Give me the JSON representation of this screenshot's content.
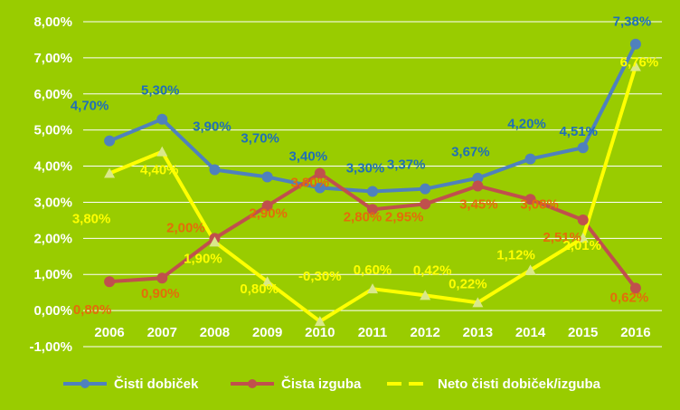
{
  "chart_data": {
    "type": "line",
    "x": [
      "2006",
      "2007",
      "2008",
      "2009",
      "2010",
      "2011",
      "2012",
      "2013",
      "2014",
      "2015",
      "2016"
    ],
    "y_ticks": [
      "-1,00%",
      "0,00%",
      "1,00%",
      "2,00%",
      "3,00%",
      "4,00%",
      "5,00%",
      "6,00%",
      "7,00%",
      "8,00%"
    ],
    "ylim": [
      -1,
      8
    ],
    "grid": true,
    "legend_position": "bottom",
    "background_color": "#99cc00",
    "series": [
      {
        "name": "Čisti dobiček",
        "color": "#4f81bd",
        "label_color": "#1f6fb8",
        "marker": "circle",
        "values": [
          4.7,
          5.3,
          3.9,
          3.7,
          3.4,
          3.3,
          3.37,
          3.67,
          4.2,
          4.51,
          7.38
        ],
        "labels": [
          "4,70%",
          "5,30%",
          "3,90%",
          "3,70%",
          "3,40%",
          "3,30%",
          "3,37%",
          "3,67%",
          "4,20%",
          "4,51%",
          "7,38%"
        ]
      },
      {
        "name": "Čista izguba",
        "color": "#c0504d",
        "label_color": "#e46c0a",
        "marker": "circle",
        "values": [
          0.8,
          0.9,
          2.0,
          2.9,
          3.8,
          2.8,
          2.95,
          3.45,
          3.08,
          2.51,
          0.62
        ],
        "labels": [
          "0,80%",
          "0,90%",
          "2,00%",
          "2,90%",
          "3,80%",
          "2,80%",
          "2,95%",
          "3,45%",
          "3,08%",
          "2,51%",
          "0,62%"
        ]
      },
      {
        "name": "Neto čisti dobiček/izguba",
        "color": "#ffff00",
        "label_color": "#ffff00",
        "marker": "triangle",
        "values": [
          3.8,
          4.4,
          1.9,
          0.8,
          -0.3,
          0.6,
          0.42,
          0.22,
          1.12,
          2.01,
          6.76
        ],
        "labels": [
          "3,80%",
          "4,40%",
          "1,90%",
          "0,80%",
          "-0,30%",
          "0,60%",
          "0,42%",
          "0,22%",
          "1,12%",
          "2,01%",
          "6,76%"
        ]
      }
    ]
  }
}
